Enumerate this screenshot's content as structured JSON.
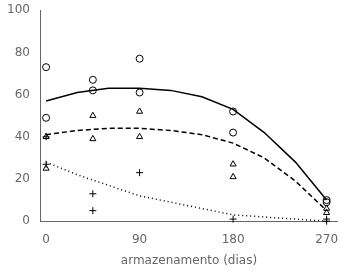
{
  "chart_data": {
    "type": "scatter",
    "xlabel": "armazenamento (dias)",
    "xlim": [
      -5,
      280
    ],
    "xticks": [
      0,
      90,
      180,
      270
    ],
    "ylim": [
      0,
      100
    ],
    "yticks": [
      0,
      20,
      40,
      60,
      80,
      100
    ],
    "grid": false,
    "series": [
      {
        "type": "scatter",
        "marker": "circle",
        "color": "#000000",
        "x": [
          0,
          0,
          45,
          45,
          90,
          90,
          180,
          180,
          270,
          270
        ],
        "values": [
          73,
          49,
          67,
          62,
          77,
          61,
          52,
          42,
          10,
          9
        ]
      },
      {
        "type": "scatter",
        "marker": "triangle",
        "color": "#000000",
        "x": [
          0,
          0,
          45,
          45,
          90,
          90,
          180,
          180,
          270,
          270
        ],
        "values": [
          40,
          25,
          50,
          39,
          52,
          40,
          27,
          21,
          6,
          4
        ]
      },
      {
        "type": "scatter",
        "marker": "plus",
        "color": "#000000",
        "x": [
          0,
          0,
          45,
          45,
          90,
          180,
          270,
          270
        ],
        "values": [
          40,
          27,
          13,
          5,
          23,
          1,
          1,
          0
        ]
      },
      {
        "type": "line",
        "line_style": "solid",
        "color": "#000000",
        "x": [
          0,
          30,
          60,
          90,
          120,
          150,
          180,
          210,
          240,
          270
        ],
        "values": [
          57,
          61,
          63,
          63,
          62,
          59,
          53,
          42,
          28,
          10
        ]
      },
      {
        "type": "line",
        "line_style": "dashed",
        "color": "#000000",
        "x": [
          0,
          30,
          60,
          90,
          120,
          150,
          180,
          210,
          240,
          270
        ],
        "values": [
          41,
          43,
          44,
          44,
          43,
          41,
          37,
          30,
          19,
          5
        ]
      },
      {
        "type": "line",
        "line_style": "dotted",
        "color": "#000000",
        "x": [
          0,
          30,
          60,
          90,
          120,
          150,
          180,
          210,
          240,
          270
        ],
        "values": [
          28,
          22,
          17,
          12,
          9,
          6,
          3,
          2,
          1,
          0
        ]
      }
    ]
  }
}
